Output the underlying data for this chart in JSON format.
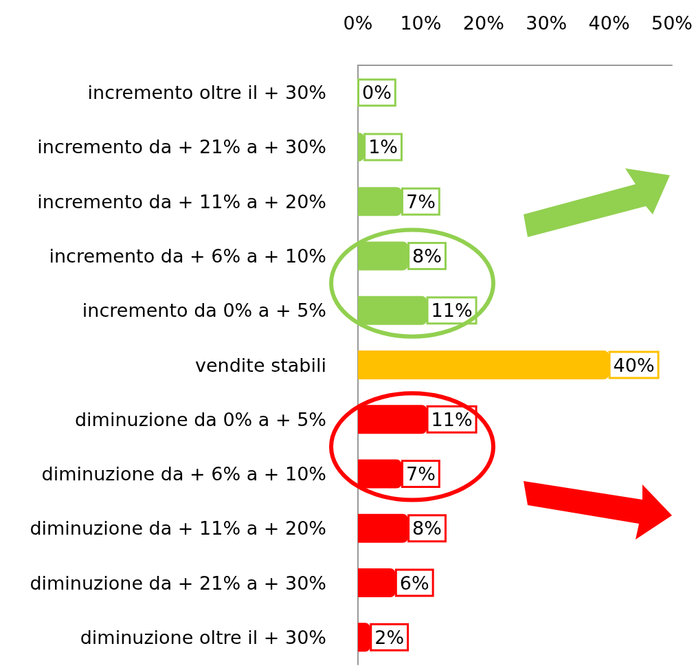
{
  "chart_data": {
    "type": "bar",
    "orientation": "horizontal",
    "categories": [
      "incremento oltre il + 30%",
      "incremento da + 21% a + 30%",
      "incremento da + 11% a + 20%",
      "incremento da + 6% a + 10%",
      "incremento da 0% a + 5%",
      "vendite stabili",
      "diminuzione da 0% a + 5%",
      "diminuzione da + 6% a + 10%",
      "diminuzione da + 11% a + 20%",
      "diminuzione da + 21% a + 30%",
      "diminuzione oltre il + 30%"
    ],
    "values": [
      0,
      1,
      7,
      8,
      11,
      40,
      11,
      7,
      8,
      6,
      2
    ],
    "colors": [
      "#92d050",
      "#92d050",
      "#92d050",
      "#92d050",
      "#92d050",
      "#ffc000",
      "#ff0000",
      "#ff0000",
      "#ff0000",
      "#ff0000",
      "#ff0000"
    ],
    "value_labels": [
      "0%",
      "1%",
      "7%",
      "8%",
      "11%",
      "40%",
      "11%",
      "7%",
      "8%",
      "6%",
      "2%"
    ],
    "xlim": [
      0,
      50
    ],
    "xticks": [
      {
        "value": 0,
        "label": "0%"
      },
      {
        "value": 10,
        "label": "10%"
      },
      {
        "value": 20,
        "label": "20%"
      },
      {
        "value": 30,
        "label": "30%"
      },
      {
        "value": 40,
        "label": "40%"
      },
      {
        "value": 50,
        "label": "50%"
      }
    ],
    "grid": false
  }
}
